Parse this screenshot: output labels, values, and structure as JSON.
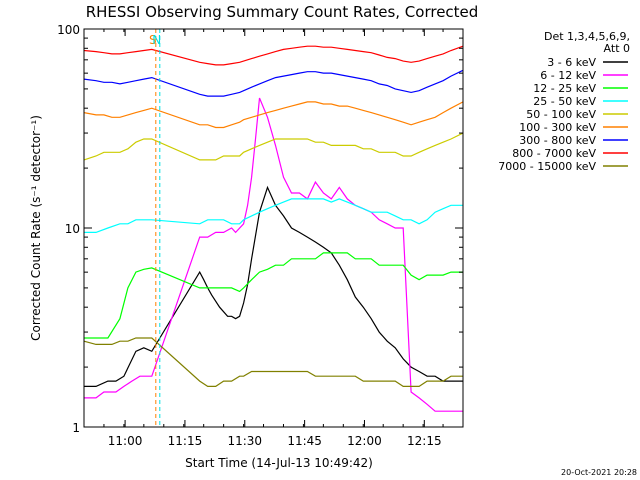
{
  "chart_data": {
    "type": "line",
    "title": "RHESSI Observing Summary Count Rates, Corrected",
    "xlabel": "Start Time (14-Jul-13 10:49:42)",
    "ylabel": "Corrected Count Rate (s⁻¹ detector⁻¹)",
    "yscale": "log",
    "ylim": [
      1,
      100
    ],
    "xlim_minutes": [
      0,
      95
    ],
    "x_ticks": [
      {
        "minute": 10.3,
        "label": "11:00"
      },
      {
        "minute": 25.3,
        "label": "11:15"
      },
      {
        "minute": 40.3,
        "label": "11:30"
      },
      {
        "minute": 55.3,
        "label": "11:45"
      },
      {
        "minute": 70.3,
        "label": "12:00"
      },
      {
        "minute": 85.3,
        "label": "12:15"
      }
    ],
    "y_ticks": [
      {
        "value": 1,
        "label": "1"
      },
      {
        "value": 10,
        "label": "10"
      },
      {
        "value": 100,
        "label": "100"
      }
    ],
    "legend_header": [
      "Det 1,3,4,5,6,9,",
      "Att 0"
    ],
    "legend_position": "right",
    "markers": [
      {
        "label": "S",
        "minute": 18.0,
        "color": "#ff8000"
      },
      {
        "label": "N",
        "minute": 19.0,
        "color": "#00e0e0"
      }
    ],
    "series": [
      {
        "name": "3 - 6 keV",
        "color": "#000000",
        "x": [
          0,
          3,
          6,
          8,
          10,
          13,
          15,
          17,
          29,
          30,
          31,
          32,
          34,
          36,
          37,
          38,
          39,
          40,
          41,
          42,
          44,
          46,
          48,
          50,
          52,
          54,
          56,
          58,
          60,
          62,
          64,
          66,
          68,
          70,
          72,
          74,
          76,
          78,
          80,
          82,
          84,
          86,
          88,
          90,
          92,
          95
        ],
        "y": [
          1.6,
          1.6,
          1.7,
          1.7,
          1.8,
          2.4,
          2.5,
          2.4,
          6,
          5.5,
          5,
          4.6,
          4,
          3.6,
          3.6,
          3.5,
          3.6,
          4.2,
          5.2,
          7,
          12,
          16,
          13,
          11.5,
          10,
          9.5,
          9,
          8.5,
          8,
          7.5,
          6.5,
          5.5,
          4.5,
          4,
          3.5,
          3,
          2.7,
          2.5,
          2.2,
          2,
          1.9,
          1.8,
          1.8,
          1.7,
          1.7,
          1.7
        ]
      },
      {
        "name": "6 - 12 keV",
        "color": "#ff00ff",
        "x": [
          0,
          3,
          5,
          8,
          10,
          12,
          14,
          17,
          29,
          31,
          33,
          35,
          37,
          38,
          40,
          41,
          42,
          43,
          44,
          46,
          48,
          50,
          52,
          54,
          56,
          58,
          60,
          62,
          64,
          66,
          68,
          70,
          72,
          74,
          76,
          78,
          80,
          82,
          84,
          86,
          88,
          90,
          92,
          95
        ],
        "y": [
          1.4,
          1.4,
          1.5,
          1.5,
          1.6,
          1.7,
          1.8,
          1.8,
          9,
          9,
          9.5,
          9.5,
          10,
          9.5,
          10.5,
          13,
          18,
          28,
          45,
          36,
          26,
          18,
          15,
          15,
          14,
          17,
          15,
          14,
          16,
          14,
          13,
          12.5,
          12,
          11,
          10.5,
          10,
          10,
          1.5,
          1.4,
          1.3,
          1.2,
          1.2,
          1.2,
          1.2
        ]
      },
      {
        "name": "12 - 25 keV",
        "color": "#00ff00",
        "x": [
          0,
          3,
          6,
          9,
          11,
          13,
          15,
          17,
          29,
          31,
          33,
          35,
          37,
          39,
          40,
          42,
          44,
          46,
          48,
          50,
          52,
          54,
          56,
          58,
          60,
          62,
          64,
          66,
          68,
          70,
          72,
          74,
          76,
          78,
          80,
          82,
          84,
          86,
          88,
          90,
          92,
          95
        ],
        "y": [
          2.8,
          2.8,
          2.8,
          3.5,
          5,
          6,
          6.2,
          6.3,
          5,
          5,
          5,
          5,
          5,
          4.8,
          5,
          5.5,
          6,
          6.2,
          6.5,
          6.5,
          7,
          7,
          7,
          7,
          7.5,
          7.5,
          7.5,
          7.5,
          7,
          7,
          7,
          6.5,
          6.5,
          6.5,
          6.5,
          5.8,
          5.5,
          5.8,
          5.8,
          5.8,
          6,
          6
        ]
      },
      {
        "name": "25 - 50 keV",
        "color": "#00ffff",
        "x": [
          0,
          3,
          6,
          9,
          11,
          13,
          15,
          17,
          29,
          31,
          33,
          35,
          37,
          39,
          40,
          42,
          44,
          46,
          48,
          50,
          52,
          54,
          56,
          58,
          60,
          62,
          64,
          66,
          68,
          70,
          72,
          74,
          76,
          78,
          80,
          82,
          84,
          86,
          88,
          90,
          92,
          95
        ],
        "y": [
          9.5,
          9.5,
          10,
          10.5,
          10.5,
          11,
          11,
          11,
          10.5,
          11,
          11,
          11,
          10.5,
          10.5,
          11,
          11.5,
          12,
          12.5,
          13,
          13.5,
          14,
          14,
          14,
          14,
          14,
          13.5,
          14,
          13.5,
          13,
          12.5,
          12,
          12,
          12,
          11.5,
          11,
          11,
          10.5,
          11,
          12,
          12.5,
          13,
          13
        ]
      },
      {
        "name": "50 - 100 keV",
        "color": "#cccc00",
        "x": [
          0,
          3,
          5,
          7,
          9,
          11,
          13,
          15,
          17,
          29,
          31,
          33,
          35,
          37,
          39,
          40,
          42,
          44,
          46,
          48,
          50,
          52,
          54,
          56,
          58,
          60,
          62,
          64,
          66,
          68,
          70,
          72,
          74,
          76,
          78,
          80,
          82,
          84,
          86,
          88,
          90,
          92,
          95
        ],
        "y": [
          22,
          23,
          24,
          24,
          24,
          25,
          27,
          28,
          28,
          22,
          22,
          22,
          23,
          23,
          23,
          24,
          25,
          26,
          27,
          28,
          28,
          28,
          28,
          28,
          27,
          27,
          26,
          26,
          26,
          26,
          25,
          25,
          24,
          24,
          24,
          23,
          23,
          24,
          25,
          26,
          27,
          28,
          30
        ]
      },
      {
        "name": "100 - 300 keV",
        "color": "#ff8000",
        "x": [
          0,
          3,
          5,
          7,
          9,
          11,
          13,
          15,
          17,
          29,
          31,
          33,
          35,
          37,
          39,
          40,
          42,
          44,
          46,
          48,
          50,
          52,
          54,
          56,
          58,
          60,
          62,
          64,
          66,
          68,
          70,
          72,
          74,
          76,
          78,
          80,
          82,
          84,
          86,
          88,
          90,
          92,
          95
        ],
        "y": [
          38,
          37,
          37,
          36,
          36,
          37,
          38,
          39,
          40,
          33,
          33,
          32,
          32,
          33,
          34,
          35,
          36,
          37,
          38,
          39,
          40,
          41,
          42,
          43,
          43,
          42,
          42,
          41,
          41,
          40,
          39,
          38,
          37,
          36,
          35,
          34,
          33,
          34,
          35,
          36,
          38,
          40,
          43
        ]
      },
      {
        "name": "300 - 800 keV",
        "color": "#0000ff",
        "x": [
          0,
          3,
          5,
          7,
          9,
          11,
          13,
          15,
          17,
          29,
          31,
          33,
          35,
          37,
          39,
          40,
          42,
          44,
          46,
          48,
          50,
          52,
          54,
          56,
          58,
          60,
          62,
          64,
          66,
          68,
          70,
          72,
          74,
          76,
          78,
          80,
          82,
          84,
          86,
          88,
          90,
          92,
          95
        ],
        "y": [
          56,
          55,
          54,
          54,
          53,
          54,
          55,
          56,
          57,
          47,
          46,
          46,
          46,
          47,
          48,
          49,
          51,
          53,
          55,
          57,
          58,
          59,
          60,
          61,
          61,
          60,
          60,
          59,
          58,
          57,
          56,
          55,
          53,
          52,
          50,
          49,
          48,
          49,
          51,
          53,
          55,
          58,
          62
        ]
      },
      {
        "name": "800 - 7000 keV",
        "color": "#ff0000",
        "x": [
          0,
          3,
          5,
          7,
          9,
          11,
          13,
          15,
          17,
          29,
          31,
          33,
          35,
          37,
          39,
          40,
          42,
          44,
          46,
          48,
          50,
          52,
          54,
          56,
          58,
          60,
          62,
          64,
          66,
          68,
          70,
          72,
          74,
          76,
          78,
          80,
          82,
          84,
          86,
          88,
          90,
          92,
          95
        ],
        "y": [
          78,
          77,
          76,
          75,
          75,
          76,
          77,
          78,
          79,
          68,
          67,
          66,
          66,
          67,
          68,
          69,
          71,
          73,
          75,
          77,
          79,
          80,
          81,
          82,
          82,
          81,
          81,
          80,
          79,
          78,
          77,
          76,
          74,
          72,
          71,
          69,
          68,
          69,
          71,
          73,
          75,
          78,
          82
        ]
      },
      {
        "name": "7000 - 15000 keV",
        "color": "#808000",
        "x": [
          0,
          3,
          5,
          7,
          9,
          11,
          13,
          15,
          17,
          29,
          31,
          33,
          35,
          37,
          39,
          40,
          42,
          44,
          46,
          48,
          50,
          52,
          54,
          56,
          58,
          60,
          62,
          64,
          66,
          68,
          70,
          72,
          74,
          76,
          78,
          80,
          82,
          84,
          86,
          88,
          90,
          92,
          95
        ],
        "y": [
          2.7,
          2.6,
          2.6,
          2.6,
          2.7,
          2.7,
          2.8,
          2.8,
          2.8,
          1.7,
          1.6,
          1.6,
          1.7,
          1.7,
          1.8,
          1.8,
          1.9,
          1.9,
          1.9,
          1.9,
          1.9,
          1.9,
          1.9,
          1.9,
          1.8,
          1.8,
          1.8,
          1.8,
          1.8,
          1.8,
          1.7,
          1.7,
          1.7,
          1.7,
          1.7,
          1.6,
          1.6,
          1.6,
          1.7,
          1.7,
          1.7,
          1.8,
          1.8
        ]
      }
    ],
    "timestamp": "20-Oct-2021 20:28"
  }
}
